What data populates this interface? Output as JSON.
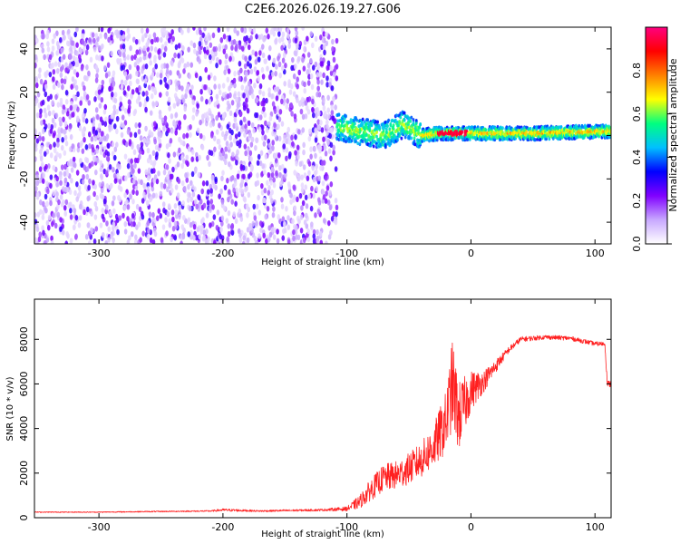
{
  "figure_title": "C2E6.2026.026.19.27.G06",
  "chart_data": [
    {
      "type": "heatmap",
      "name": "spectrogram",
      "xlabel": "Height of straight line (km)",
      "ylabel": "Frequency (Hz)",
      "xlim": [
        -352,
        113
      ],
      "ylim": [
        -50,
        50
      ],
      "xticks": [
        -300,
        -200,
        -100,
        0,
        100
      ],
      "yticks": [
        -40,
        -20,
        0,
        20,
        40
      ],
      "colorbar": {
        "label": "Normalized spectral amplitude",
        "range": [
          0,
          1
        ],
        "ticks": [
          "0.0",
          "0.2",
          "0.4",
          "0.6",
          "0.8"
        ],
        "tick_values": [
          0.0,
          0.2,
          0.4,
          0.6,
          0.8
        ],
        "colors": [
          "#ffffff",
          "#c8a8ff",
          "#8000ff",
          "#0000ff",
          "#00c0ff",
          "#00ff80",
          "#ffff00",
          "#ff8000",
          "#ff0000",
          "#ff0080"
        ]
      },
      "regions": [
        {
          "description": "noise",
          "x": [
            -352,
            -108
          ],
          "freq_spread": 50,
          "amplitude": [
            0.05,
            0.3
          ]
        },
        {
          "description": "signal band",
          "x": [
            -108,
            113
          ],
          "center_freq": [
            [
              -108,
              4
            ],
            [
              -90,
              2
            ],
            [
              -70,
              0
            ],
            [
              -55,
              5
            ],
            [
              -40,
              0
            ],
            [
              -25,
              1
            ],
            [
              -10,
              1
            ],
            [
              0,
              1
            ],
            [
              50,
              1
            ],
            [
              113,
              2
            ]
          ],
          "peak_near_x": -15,
          "amplitude": [
            0.3,
            0.95
          ]
        }
      ]
    },
    {
      "type": "line",
      "name": "snr",
      "xlabel": "Height of straight line (km)",
      "ylabel": "SNR (10 * v/v)",
      "xlim": [
        -352,
        113
      ],
      "ylim": [
        0,
        9800
      ],
      "xticks": [
        -300,
        -200,
        -100,
        0,
        100
      ],
      "yticks": [
        0,
        2000,
        4000,
        6000,
        8000
      ],
      "series": [
        {
          "name": "SNR",
          "color": "#ff2020",
          "x": [
            -352,
            -300,
            -250,
            -210,
            -200,
            -170,
            -150,
            -120,
            -100,
            -90,
            -80,
            -70,
            -60,
            -50,
            -40,
            -30,
            -20,
            -15,
            -10,
            0,
            10,
            20,
            30,
            40,
            60,
            80,
            100,
            108,
            110,
            113
          ],
          "y": [
            250,
            250,
            280,
            300,
            350,
            300,
            320,
            350,
            400,
            700,
            1300,
            1800,
            1900,
            2200,
            2600,
            3200,
            4300,
            6000,
            4500,
            5700,
            6100,
            6800,
            7500,
            8000,
            8100,
            8050,
            7800,
            7800,
            6000,
            6000
          ],
          "noise": [
            20,
            20,
            25,
            30,
            60,
            40,
            45,
            50,
            100,
            300,
            500,
            600,
            650,
            700,
            800,
            1000,
            1400,
            2000,
            1600,
            900,
            500,
            300,
            150,
            120,
            100,
            100,
            100,
            100,
            150,
            150
          ]
        }
      ]
    }
  ]
}
